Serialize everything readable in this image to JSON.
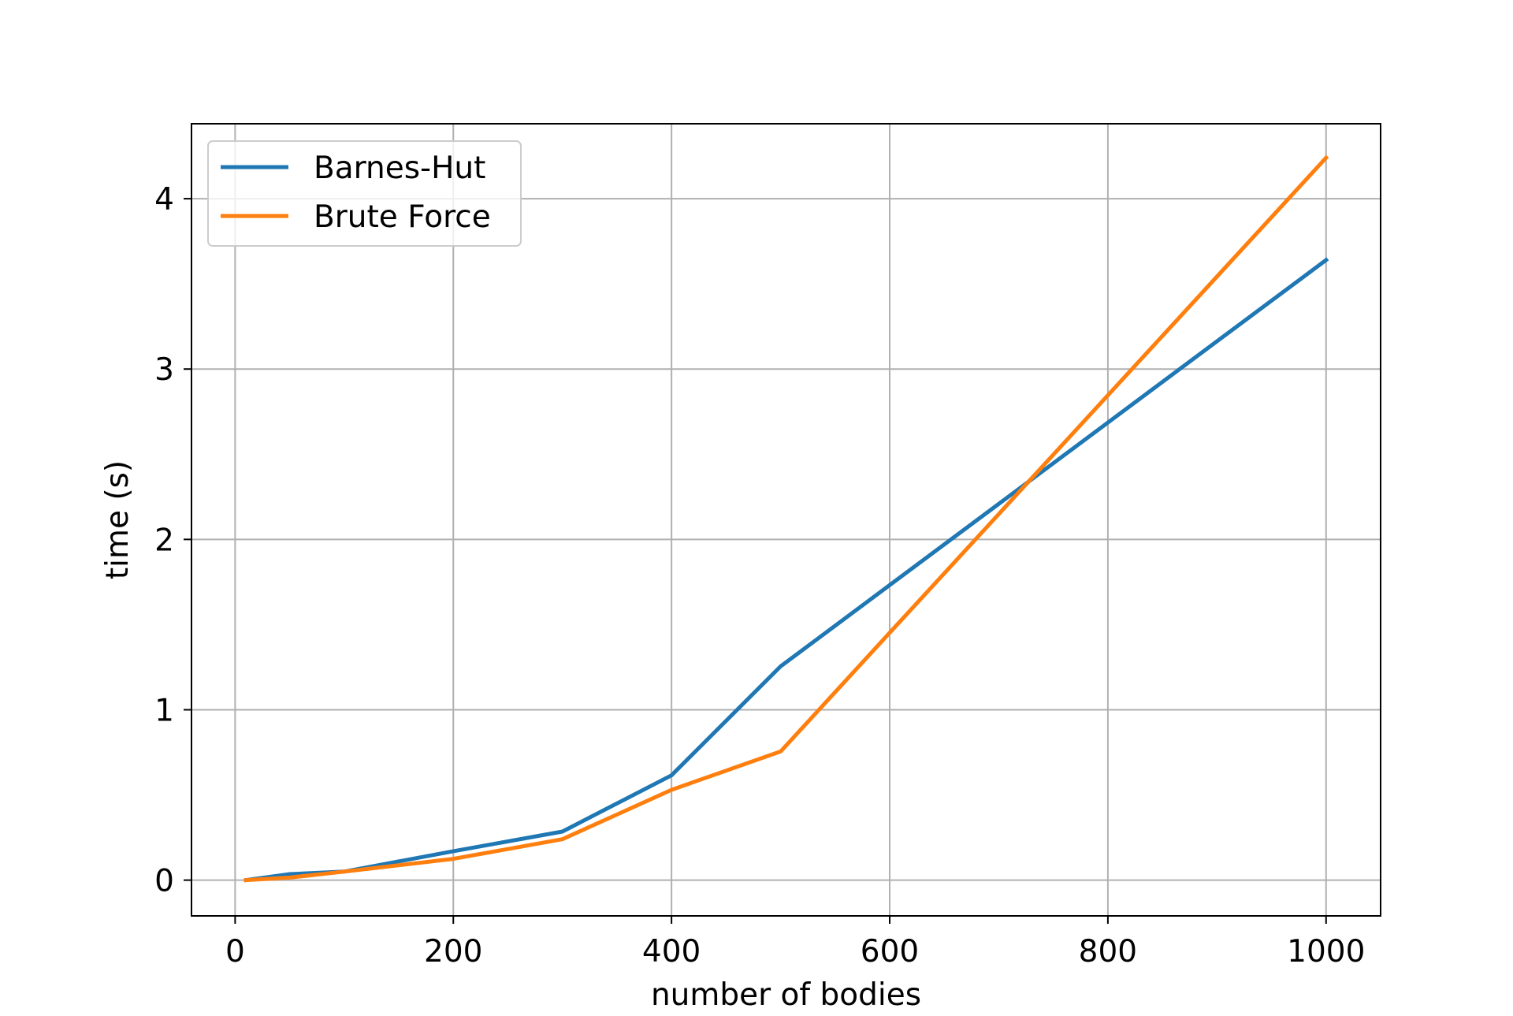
{
  "chart_data": {
    "type": "line",
    "title": "",
    "xlabel": "number of bodies",
    "ylabel": "time (s)",
    "xlim": [
      -40,
      1050
    ],
    "ylim": [
      -0.21,
      4.44
    ],
    "xticks": [
      0,
      200,
      400,
      600,
      800,
      1000
    ],
    "yticks": [
      0,
      1,
      2,
      3,
      4
    ],
    "grid": true,
    "legend_position": "top-left",
    "series": [
      {
        "name": "Barnes-Hut",
        "color": "#1f77b4",
        "x": [
          10,
          50,
          100,
          200,
          300,
          400,
          500,
          1000
        ],
        "y": [
          0.0,
          0.035,
          0.05,
          0.17,
          0.285,
          0.615,
          1.255,
          3.64
        ]
      },
      {
        "name": "Brute Force",
        "color": "#ff7f0e",
        "x": [
          10,
          50,
          100,
          200,
          300,
          400,
          500,
          1000
        ],
        "y": [
          0.0,
          0.015,
          0.05,
          0.125,
          0.24,
          0.53,
          0.755,
          4.24
        ]
      }
    ]
  }
}
